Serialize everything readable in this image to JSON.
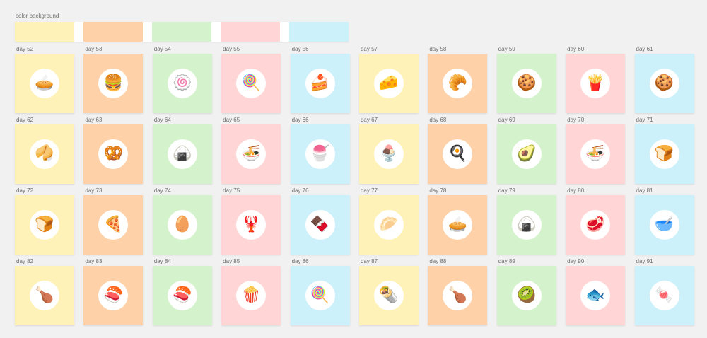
{
  "header": {
    "title": "color background"
  },
  "palette": [
    "#fff2b8",
    "#ffd1a8",
    "#d4f2cc",
    "#ffd5d5",
    "#cdf1fb"
  ],
  "tiles": [
    {
      "label": "day 52",
      "icon": "pie-icon",
      "glyph": "🥧"
    },
    {
      "label": "day 53",
      "icon": "hamburger-icon",
      "glyph": "🍔"
    },
    {
      "label": "day 54",
      "icon": "swiss-roll-icon",
      "glyph": "🍥"
    },
    {
      "label": "day 55",
      "icon": "lollipop-icon",
      "glyph": "🍭"
    },
    {
      "label": "day 56",
      "icon": "cake-icon",
      "glyph": "🍰"
    },
    {
      "label": "day 57",
      "icon": "cheese-icon",
      "glyph": "🧀"
    },
    {
      "label": "day 58",
      "icon": "croissant-icon",
      "glyph": "🥐"
    },
    {
      "label": "day 59",
      "icon": "gingerbread-icon",
      "glyph": "🍪"
    },
    {
      "label": "day 60",
      "icon": "french-fries-icon",
      "glyph": "🍟"
    },
    {
      "label": "day 61",
      "icon": "cookies-icon",
      "glyph": "🍪"
    },
    {
      "label": "day 62",
      "icon": "fortune-cookie-icon",
      "glyph": "🥠"
    },
    {
      "label": "day 63",
      "icon": "pretzel-icon",
      "glyph": "🥨"
    },
    {
      "label": "day 64",
      "icon": "onigiri-icon",
      "glyph": "🍙"
    },
    {
      "label": "day 65",
      "icon": "noodle-bowl-icon",
      "glyph": "🍜"
    },
    {
      "label": "day 66",
      "icon": "cotton-candy-icon",
      "glyph": "🍧"
    },
    {
      "label": "day 67",
      "icon": "sundae-icon",
      "glyph": "🍨"
    },
    {
      "label": "day 68",
      "icon": "omelette-plate-icon",
      "glyph": "🍳"
    },
    {
      "label": "day 69",
      "icon": "avocado-icon",
      "glyph": "🥑"
    },
    {
      "label": "day 70",
      "icon": "ramen-bowl-icon",
      "glyph": "🍜"
    },
    {
      "label": "day 71",
      "icon": "toast-icon",
      "glyph": "🍞"
    },
    {
      "label": "day 72",
      "icon": "bread-tray-icon",
      "glyph": "🍞"
    },
    {
      "label": "day 73",
      "icon": "pizza-slice-icon",
      "glyph": "🍕"
    },
    {
      "label": "day 74",
      "icon": "easter-egg-icon",
      "glyph": "🥚"
    },
    {
      "label": "day 75",
      "icon": "lobster-icon",
      "glyph": "🦞"
    },
    {
      "label": "day 76",
      "icon": "chocolate-bar-icon",
      "glyph": "🍫"
    },
    {
      "label": "day 77",
      "icon": "dumpling-basket-icon",
      "glyph": "🥟"
    },
    {
      "label": "day 78",
      "icon": "egg-tart-icon",
      "glyph": "🥧"
    },
    {
      "label": "day 79",
      "icon": "zongzi-icon",
      "glyph": "🍙"
    },
    {
      "label": "day 80",
      "icon": "steak-icon",
      "glyph": "🥩"
    },
    {
      "label": "day 81",
      "icon": "soup-bowl-icon",
      "glyph": "🥣"
    },
    {
      "label": "day 82",
      "icon": "chicken-drumstick-icon",
      "glyph": "🍗"
    },
    {
      "label": "day 83",
      "icon": "sushi-rolls-icon",
      "glyph": "🍣"
    },
    {
      "label": "day 84",
      "icon": "nigiri-icon",
      "glyph": "🍣"
    },
    {
      "label": "day 85",
      "icon": "popcorn-icon",
      "glyph": "🍿"
    },
    {
      "label": "day 86",
      "icon": "lollipops-icon",
      "glyph": "🍭"
    },
    {
      "label": "day 87",
      "icon": "spring-rolls-icon",
      "glyph": "🌯"
    },
    {
      "label": "day 88",
      "icon": "roast-chicken-icon",
      "glyph": "🍗"
    },
    {
      "label": "day 89",
      "icon": "kiwi-icon",
      "glyph": "🥝"
    },
    {
      "label": "day 90",
      "icon": "salmon-steak-icon",
      "glyph": "🐟"
    },
    {
      "label": "day 91",
      "icon": "macarons-icon",
      "glyph": "🍬"
    }
  ]
}
